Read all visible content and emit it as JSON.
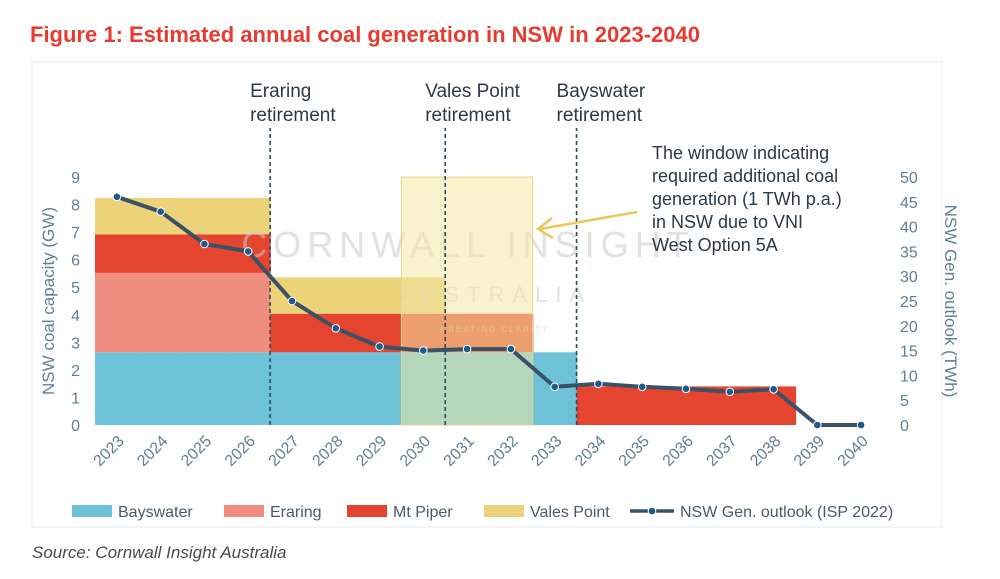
{
  "title": "Figure 1: Estimated annual coal generation in NSW in 2023-2040",
  "source": "Source: Cornwall Insight Australia",
  "watermark": {
    "line1": "CORNWALL INSIGHT",
    "line2": "AUSTRALIA",
    "line3": "CREATING CLARITY"
  },
  "colors": {
    "title": "#e63b2e",
    "bayswater": "#6ec2d8",
    "eraring": "#f08d80",
    "mt_piper": "#e5452f",
    "vales_point": "#ecd37a",
    "line": "#3b5266",
    "marker": "#1f5a8c",
    "axis_text": "#5f7f93",
    "window": "#f3e7a4",
    "arrow": "#ecc85a"
  },
  "chart_data": {
    "type": "area",
    "categories": [
      "2023",
      "2024",
      "2025",
      "2026",
      "2027",
      "2028",
      "2029",
      "2030",
      "2031",
      "2032",
      "2033",
      "2034",
      "2035",
      "2036",
      "2037",
      "2038",
      "2039",
      "2040"
    ],
    "ylabel": "NSW coal capacity (GW)",
    "y2label": "NSW Gen. outlook (TWh)",
    "ylim": [
      0,
      9
    ],
    "y2lim": [
      0,
      50
    ],
    "yticks": [
      "0",
      "1",
      "2",
      "3",
      "4",
      "5",
      "6",
      "7",
      "8",
      "9"
    ],
    "y2ticks": [
      "0",
      "5",
      "10",
      "15",
      "20",
      "25",
      "30",
      "35",
      "40",
      "45",
      "50"
    ],
    "stack": [
      {
        "name": "Bayswater",
        "key": "bayswater",
        "values": [
          2.64,
          2.64,
          2.64,
          2.64,
          2.64,
          2.64,
          2.64,
          2.64,
          2.64,
          2.64,
          2.64,
          0,
          0,
          0,
          0,
          0,
          0,
          0
        ]
      },
      {
        "name": "Eraring",
        "key": "eraring",
        "values": [
          2.88,
          2.88,
          2.88,
          2.88,
          0,
          0,
          0,
          0,
          0,
          0,
          0,
          0,
          0,
          0,
          0,
          0,
          0,
          0
        ]
      },
      {
        "name": "Mt Piper",
        "key": "mt_piper",
        "values": [
          1.4,
          1.4,
          1.4,
          1.4,
          1.4,
          1.4,
          1.4,
          1.4,
          1.4,
          1.4,
          0,
          1.4,
          1.4,
          1.4,
          1.4,
          1.4,
          0,
          0
        ]
      },
      {
        "name": "Vales Point",
        "key": "vales_point",
        "values": [
          1.32,
          1.32,
          1.32,
          1.32,
          1.32,
          1.32,
          1.32,
          1.32,
          0,
          0,
          0,
          0,
          0,
          0,
          0,
          0,
          0,
          0
        ]
      }
    ],
    "line_series": {
      "name": "NSW Gen. outlook (ISP 2022)",
      "axis": "right",
      "values": [
        46,
        43,
        36.5,
        35,
        25,
        19.5,
        15.8,
        15,
        15.3,
        15.3,
        7.7,
        8.3,
        7.7,
        7.3,
        6.7,
        7.2,
        0,
        0
      ]
    },
    "legend": [
      "Bayswater",
      "Eraring",
      "Mt Piper",
      "Vales Point",
      "NSW Gen. outlook (ISP 2022)"
    ],
    "legend_position": "bottom",
    "annotations": {
      "retirements": [
        {
          "label_line1": "Eraring",
          "label_line2": "retirement",
          "after": "2026"
        },
        {
          "label_line1": "Vales Point",
          "label_line2": "retirement",
          "after": "2030"
        },
        {
          "label_line1": "Bayswater",
          "label_line2": "retirement",
          "after": "2033"
        }
      ],
      "window": {
        "from": "2030",
        "to": "2032",
        "lines": [
          "The window indicating",
          "required additional coal",
          "generation (1 TWh p.a.)",
          "in NSW due to VNI",
          "West Option 5A"
        ]
      }
    }
  }
}
